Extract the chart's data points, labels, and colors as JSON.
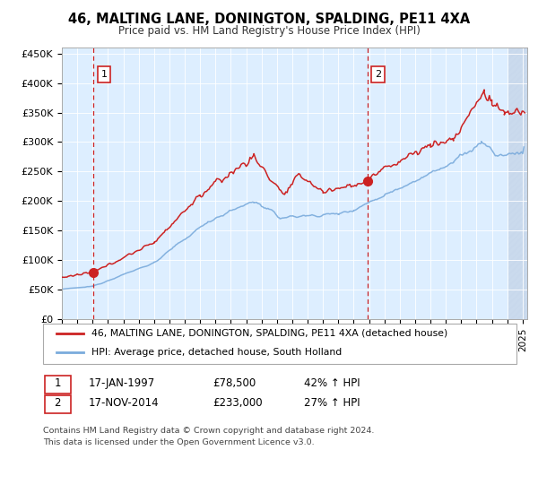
{
  "title": "46, MALTING LANE, DONINGTON, SPALDING, PE11 4XA",
  "subtitle": "Price paid vs. HM Land Registry's House Price Index (HPI)",
  "footer": "Contains HM Land Registry data © Crown copyright and database right 2024.\nThis data is licensed under the Open Government Licence v3.0.",
  "legend_line1": "46, MALTING LANE, DONINGTON, SPALDING, PE11 4XA (detached house)",
  "legend_line2": "HPI: Average price, detached house, South Holland",
  "transaction1_date": "17-JAN-1997",
  "transaction1_price": "£78,500",
  "transaction1_hpi": "42% ↑ HPI",
  "transaction1_x": 1997.04,
  "transaction1_y": 78500,
  "transaction2_date": "17-NOV-2014",
  "transaction2_price": "£233,000",
  "transaction2_hpi": "27% ↑ HPI",
  "transaction2_x": 2014.88,
  "transaction2_y": 233000,
  "red_color": "#cc2222",
  "blue_color": "#7aabdc",
  "hatch_color": "#c8d8ec",
  "grid_color": "#ffffff",
  "plot_bg": "#ddeeff",
  "ylim": [
    0,
    460000
  ],
  "xlim": [
    1995.0,
    2025.3
  ],
  "yticks": [
    0,
    50000,
    100000,
    150000,
    200000,
    250000,
    300000,
    350000,
    400000,
    450000
  ],
  "ytick_labels": [
    "£0",
    "£50K",
    "£100K",
    "£150K",
    "£200K",
    "£250K",
    "£300K",
    "£350K",
    "£400K",
    "£450K"
  ]
}
